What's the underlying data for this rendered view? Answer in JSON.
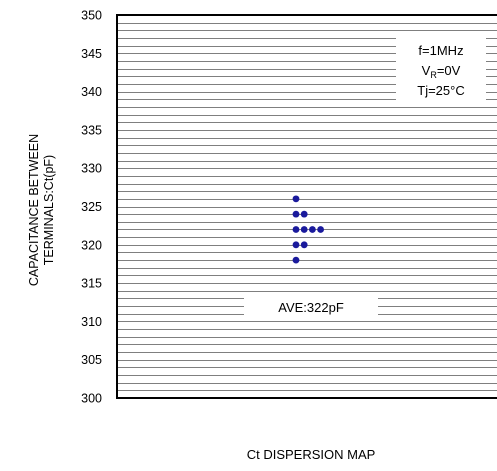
{
  "chart_data": {
    "type": "scatter",
    "title": "",
    "xlabel": "Ct DISPERSION MAP",
    "ylabel_lines": [
      "CAPACITANCE BETWEEN",
      "TERMINALS:Ct(pF)"
    ],
    "ylim": [
      300,
      350
    ],
    "y_ticks": [
      300,
      305,
      310,
      315,
      320,
      325,
      330,
      335,
      340,
      345,
      350
    ],
    "grid": "horizontal",
    "grid_step": 1,
    "marker_color": "#1a1a9c",
    "points": [
      {
        "x": 0,
        "y": 326
      },
      {
        "x": 0,
        "y": 324
      },
      {
        "x": 1,
        "y": 324
      },
      {
        "x": 0,
        "y": 322
      },
      {
        "x": 1,
        "y": 322
      },
      {
        "x": 2,
        "y": 322
      },
      {
        "x": 3,
        "y": 322
      },
      {
        "x": 0,
        "y": 320
      },
      {
        "x": 1,
        "y": 320
      },
      {
        "x": 0,
        "y": 318
      }
    ],
    "conditions": {
      "line1": "f=1MHz",
      "line2_main": "V",
      "line2_sub": "R",
      "line2_rest": "=0V",
      "line3": "Tj=25°C"
    },
    "average_label": "AVE:322pF",
    "average_value": 322
  }
}
